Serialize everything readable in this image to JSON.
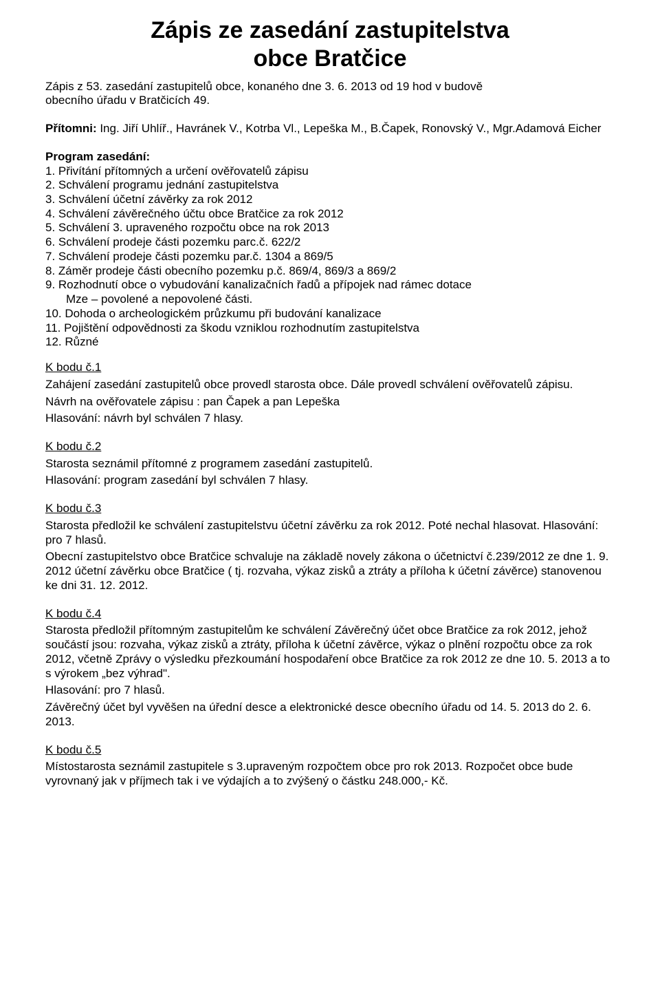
{
  "title_line1": "Zápis ze zasedání zastupitelstva",
  "title_line2": "obce Bratčice",
  "intro_line1": "Zápis z 53. zasedání zastupitelů obce, konaného dne 3. 6. 2013 od 19 hod v budově",
  "intro_line2": "obecního úřadu v Bratčicích 49.",
  "pritomni_label": "Přítomni:",
  "pritomni_text": " Ing. Jiří Uhlíř., Havránek V., Kotrba Vl., Lepeška M., B.Čapek, Ronovský V., Mgr.Adamová Eicher",
  "program_label": "Program zasedání:",
  "program_items": [
    "1. Přivítání přítomných a určení ověřovatelů zápisu",
    "2. Schválení programu jednání zastupitelstva",
    "3. Schválení účetní závěrky za rok 2012",
    "4. Schválení závěrečného účtu obce Bratčice za rok 2012",
    "5. Schválení 3. upraveného rozpočtu obce na rok 2013",
    "6. Schválení prodeje části pozemku parc.č. 622/2",
    "7. Schválení prodeje části pozemku par.č. 1304 a 869/5",
    "8. Záměr prodeje části obecního pozemku p.č. 869/4, 869/3 a 869/2",
    "9. Rozhodnutí obce o vybudování kanalizačních řadů a přípojek nad rámec dotace"
  ],
  "program_item9_cont": "Mze – povolené a nepovolené části.",
  "program_items_tail": [
    "10. Dohoda o archeologickém průzkumu při budování kanalizace",
    "11. Pojištění odpovědnosti za škodu vzniklou rozhodnutím zastupitelstva",
    "12. Různé"
  ],
  "points": [
    {
      "heading": "K bodu č.1",
      "lines": [
        "Zahájení zasedání zastupitelů obce provedl starosta obce. Dále provedl schválení ověřovatelů zápisu.",
        "Návrh na ověřovatele zápisu : pan Čapek   a pan Lepeška",
        "Hlasování: návrh byl schválen 7 hlasy."
      ]
    },
    {
      "heading": "K bodu č.2",
      "lines": [
        "Starosta seznámil přítomné z programem zasedání zastupitelů.",
        "Hlasování: program zasedání byl schválen 7 hlasy."
      ]
    },
    {
      "heading": "K bodu č.3",
      "lines": [
        "Starosta předložil ke schválení zastupitelstvu účetní závěrku za rok 2012. Poté nechal hlasovat. Hlasování: pro 7 hlasů.",
        "Obecní zastupitelstvo obce Bratčice schvaluje na základě novely zákona o účetnictví č.239/2012 ze dne 1. 9. 2012 účetní závěrku obce Bratčice ( tj. rozvaha, výkaz zisků a ztráty a příloha k účetní závěrce) stanovenou ke dni 31. 12. 2012."
      ]
    },
    {
      "heading": "K bodu č.4",
      "lines": [
        "Starosta předložil přítomným zastupitelům ke schválení Závěrečný účet obce Bratčice za rok 2012, jehož součástí jsou: rozvaha, výkaz zisků a ztráty, příloha k účetní závěrce, výkaz o plnění rozpočtu obce za rok 2012, včetně Zprávy o výsledku přezkoumání hospodaření obce Bratčice za rok 2012 ze dne 10. 5. 2013 a to s výrokem „bez výhrad\".",
        "Hlasování: pro 7 hlasů.",
        "Závěrečný účet byl vyvěšen na úřední desce a elektronické desce obecního úřadu od 14. 5. 2013 do 2. 6. 2013."
      ]
    },
    {
      "heading": "K bodu č.5",
      "lines": [
        "Místostarosta seznámil zastupitele s 3.upraveným rozpočtem obce pro rok 2013. Rozpočet obce bude vyrovnaný jak v příjmech tak i ve výdajích a to zvýšený o částku 248.000,- Kč."
      ]
    }
  ]
}
